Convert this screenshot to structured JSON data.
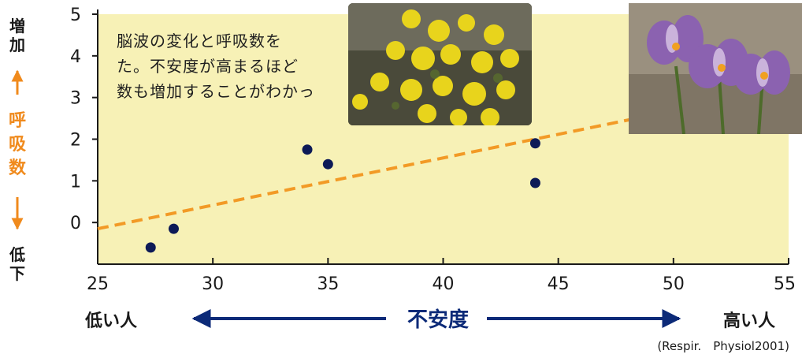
{
  "chart_data": {
    "type": "scatter",
    "xlim": [
      25,
      55
    ],
    "ylim": [
      -1,
      5
    ],
    "xticks": [
      "25",
      "30",
      "35",
      "40",
      "45",
      "50",
      "55"
    ],
    "yticks": [
      "5",
      "4",
      "3",
      "2",
      "1",
      "0"
    ],
    "ytick_values": [
      5,
      4,
      3,
      2,
      1,
      0
    ],
    "xtick_values": [
      25,
      30,
      35,
      40,
      45,
      50,
      55
    ],
    "points": [
      {
        "x": 27.3,
        "y": -0.6
      },
      {
        "x": 28.3,
        "y": -0.15
      },
      {
        "x": 34.1,
        "y": 1.75
      },
      {
        "x": 35.0,
        "y": 1.4
      },
      {
        "x": 44.0,
        "y": 1.9
      },
      {
        "x": 44.0,
        "y": 0.95
      }
    ],
    "trendline": {
      "x": [
        25,
        55
      ],
      "y": [
        -0.15,
        3.25
      ]
    },
    "grid": false,
    "colors": {
      "plot_bg": "#f7f1b6",
      "point": "#0d1a57",
      "trend": "#f29a26",
      "axis": "#1a1a1a",
      "arrow": "#0c2a78",
      "ylabel_mid": "#f08a1c"
    }
  },
  "y_axis_label": {
    "top": "増\n加",
    "middle": "呼\n吸\n数",
    "bottom": "低\n下"
  },
  "x_axis_label": {
    "left": "低い人",
    "center": "不安度",
    "right": "高い人"
  },
  "caption": "脳波の変化と呼吸数を\nた。不安度が高まるほど\n数も増加することがわかっ",
  "source": "(Respir.　Physiol2001)"
}
